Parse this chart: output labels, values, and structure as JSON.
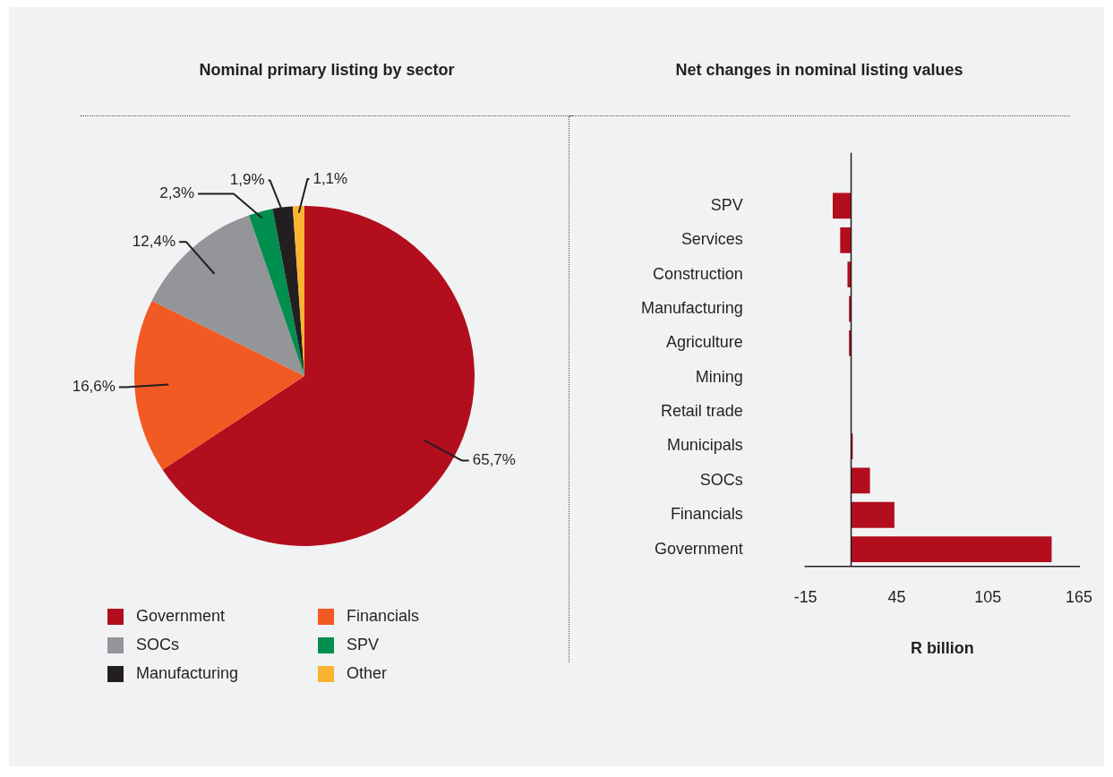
{
  "chart_data": [
    {
      "type": "pie",
      "title": "Nominal primary listing by sector",
      "categories": [
        "Government",
        "Financials",
        "SOCs",
        "SPV",
        "Manufacturing",
        "Other"
      ],
      "values": [
        65.7,
        16.6,
        12.4,
        2.3,
        1.9,
        1.1
      ],
      "colors": [
        "#b20e1d",
        "#f15a22",
        "#939598",
        "#008f4f",
        "#231f20",
        "#fbb42f"
      ],
      "value_labels": [
        "65,7%",
        "16,6%",
        "12,4%",
        "2,3%",
        "1,9%",
        "1,1%"
      ],
      "legend": "bottom"
    },
    {
      "type": "bar",
      "orientation": "horizontal",
      "title": "Net changes in nominal listing values",
      "xlabel": "R billion",
      "categories": [
        "SPV",
        "Services",
        "Construction",
        "Manufacturing",
        "Agriculture",
        "Mining",
        "Retail trade",
        "Municipals",
        "SOCs",
        "Financials",
        "Government"
      ],
      "values": [
        -12.1,
        -7.2,
        -2.4,
        -1.4,
        -1.4,
        null,
        null,
        1.1,
        12.4,
        28.5,
        132
      ],
      "base": [
        15,
        15,
        15,
        15,
        15,
        null,
        null,
        15,
        15,
        15,
        15
      ],
      "color": "#b20e1d",
      "xlim": [
        -15,
        165
      ],
      "xticks": [
        -15,
        45,
        105,
        165
      ],
      "ref_lines": [
        {
          "axis": "x",
          "value": 15,
          "color": "#231f20"
        }
      ],
      "grid": false,
      "legend": false
    }
  ]
}
